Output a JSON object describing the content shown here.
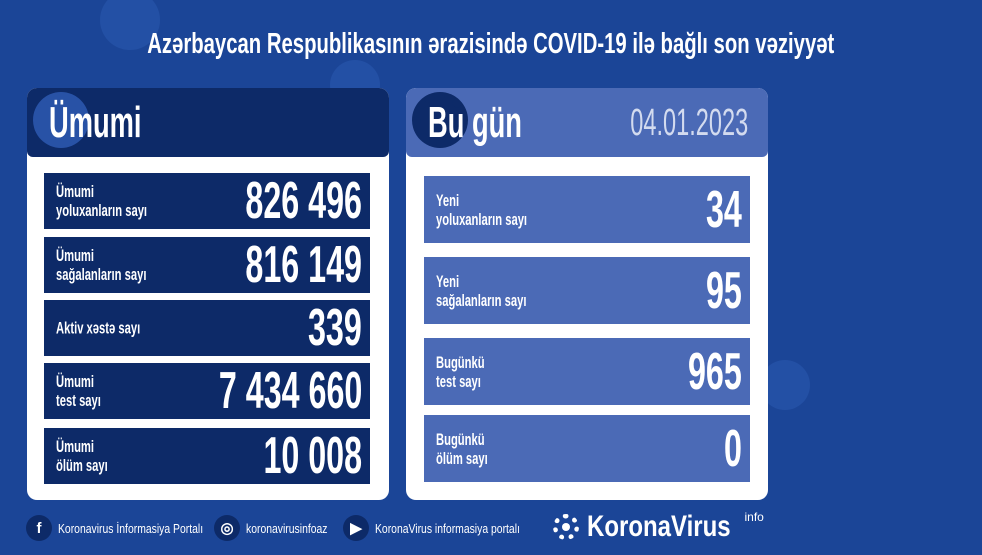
{
  "title": "Azərbaycan Respublikasının ərazisində COVID-19 ilə bağlı son vəziyyət",
  "total": {
    "heading": "Ümumi",
    "rows": [
      {
        "label1": "Ümumi",
        "label2": "yoluxanların sayı",
        "value": "826 496"
      },
      {
        "label1": "Ümumi",
        "label2": "sağalanların sayı",
        "value": "816 149"
      },
      {
        "label1": "Aktiv xəstə sayı",
        "label2": "",
        "value": "339"
      },
      {
        "label1": "Ümumi",
        "label2": "test sayı",
        "value": "7 434 660"
      },
      {
        "label1": "Ümumi",
        "label2": "ölüm sayı",
        "value": "10 008"
      }
    ]
  },
  "today": {
    "heading": "Bu gün",
    "date": "04.01.2023",
    "rows": [
      {
        "label1": "Yeni",
        "label2": "yoluxanların sayı",
        "value": "34"
      },
      {
        "label1": "Yeni",
        "label2": "sağalanların sayı",
        "value": "95"
      },
      {
        "label1": "Bugünkü",
        "label2": "test sayı",
        "value": "965"
      },
      {
        "label1": "Bugünkü",
        "label2": "ölüm sayı",
        "value": "0"
      }
    ]
  },
  "footer": {
    "facebook": "Koronavirus İnformasiya Portalı",
    "instagram": "koronavirusinfoaz",
    "youtube": "KoronaVirus informasiya portalı",
    "logo": "KoronaVirus",
    "logo_sup": "info"
  },
  "colors": {
    "background": "#1b4597",
    "dark": "#0d2a68",
    "light": "#4b6ab6"
  }
}
